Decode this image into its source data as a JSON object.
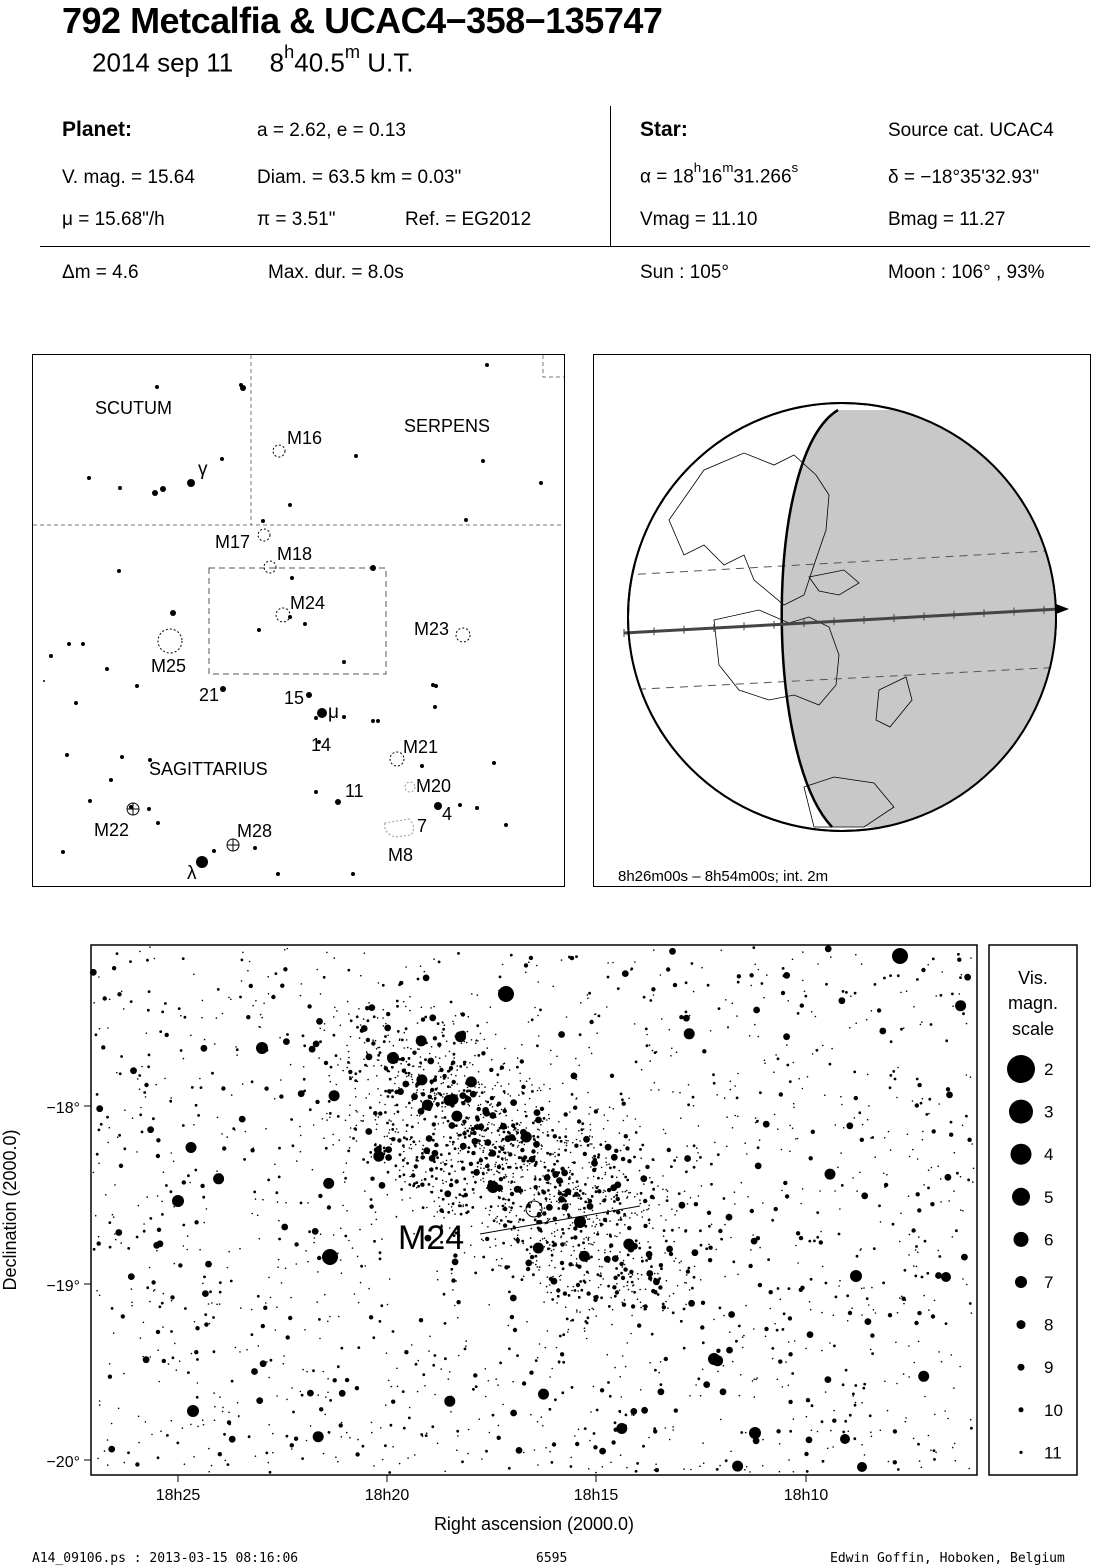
{
  "header": {
    "title": "792 Metcalfia  &  UCAC4−358−135747",
    "date": "2014 sep 11",
    "time_h": "8",
    "time_m": "40.5",
    "time_unit": "U.T."
  },
  "info": {
    "planet_label": "Planet:",
    "orbit": "a = 2.62, e = 0.13",
    "vmag": "V. mag. = 15.64",
    "diam": "Diam. = 63.5 km = 0.03\"",
    "mu": "μ =  15.68\"/h",
    "pi": "π =  3.51\"",
    "ref": "Ref. = EG2012",
    "star_label": "Star:",
    "source": "Source cat.  UCAC4",
    "alpha_prefix": "α = 18",
    "alpha_h": "h",
    "alpha_mid": "16",
    "alpha_m": "m",
    "alpha_s_val": "31.266",
    "alpha_s": "s",
    "delta": "δ = −18°35'32.93\"",
    "star_vmag": "Vmag = 11.10",
    "star_bmag": "Bmag = 11.27",
    "dm": "Δm = 4.6",
    "maxdur": "Max. dur. = 8.0s",
    "sun": "Sun : 105°",
    "moon": "Moon : 106° , 93%"
  },
  "finder": {
    "constellations": [
      "SCUTUM",
      "SERPENS",
      "SAGITTARIUS"
    ],
    "objects": [
      "M16",
      "M17",
      "M18",
      "M24",
      "M23",
      "M25",
      "M21",
      "M20",
      "M22",
      "M28",
      "M8"
    ],
    "star_labels": [
      "γ",
      "21",
      "15",
      "μ",
      "14",
      "11",
      "4",
      "7",
      "λ"
    ]
  },
  "globe": {
    "caption": "8h26m00s –  8h54m00s; int.  2m"
  },
  "detail": {
    "cluster_label": "M24",
    "dec_ticks": [
      "−18°",
      "−19°",
      "−20°"
    ],
    "ra_ticks": [
      "18h25",
      "18h20",
      "18h15",
      "18h10"
    ],
    "ylabel": "Declination (2000.0)",
    "xlabel": "Right ascension (2000.0)"
  },
  "legend": {
    "title": [
      "Vis.",
      "magn.",
      "scale"
    ],
    "mags": [
      "2",
      "3",
      "4",
      "5",
      "6",
      "7",
      "8",
      "9",
      "10",
      "11"
    ]
  },
  "footer": {
    "file": "A14_09106.ps : 2013-03-15 08:16:06",
    "number": "6595",
    "author": "Edwin Goffin, Hoboken, Belgium"
  }
}
